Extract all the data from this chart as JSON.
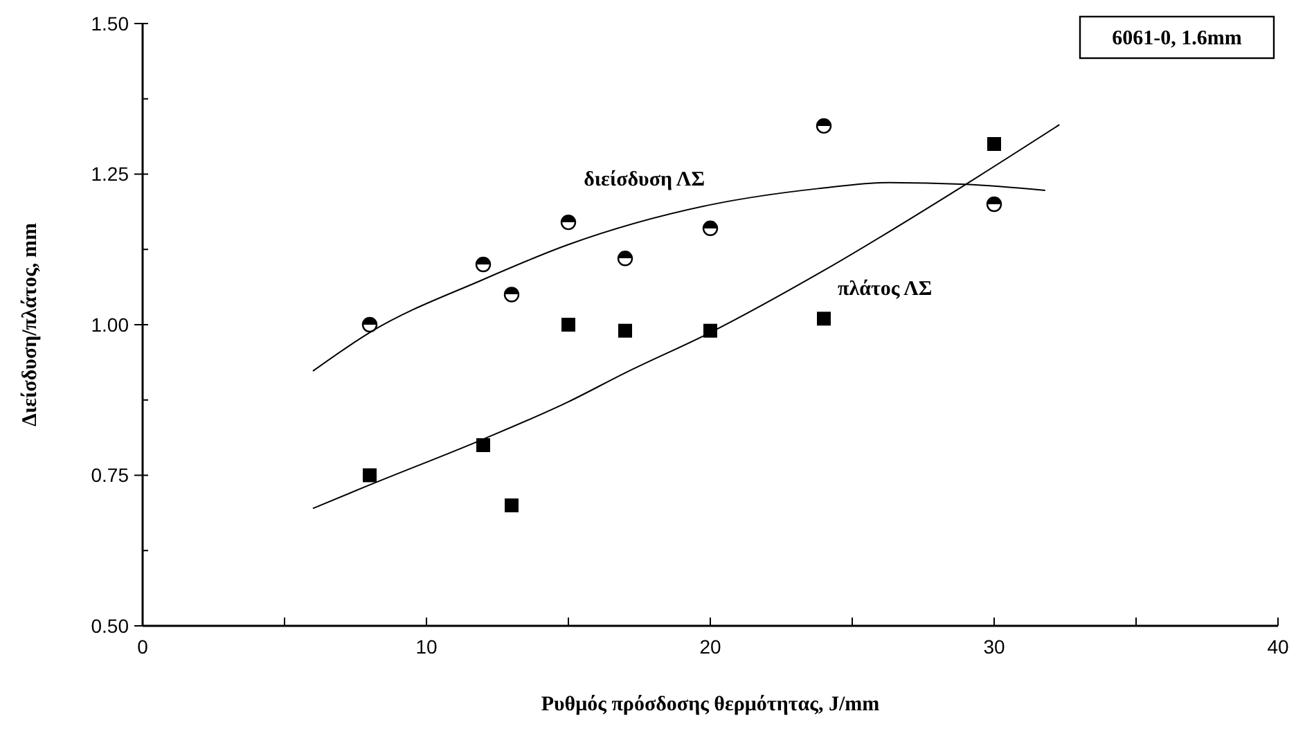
{
  "chart_data": {
    "type": "scatter",
    "xlabel": "Ρυθμός πρόσδοσης θερμότητας, J/mm",
    "ylabel": "Διείσδυση/πλάτος, mm",
    "annotations": [
      "6061-0, 1.6mm"
    ],
    "xlim": [
      0,
      40
    ],
    "ylim": [
      0.5,
      1.5
    ],
    "xticks": [
      0,
      {
        "value": 5,
        "label": null
      },
      10,
      {
        "value": 15,
        "label": null
      },
      20,
      {
        "value": 25,
        "label": null
      },
      30,
      {
        "value": 35,
        "label": null
      },
      40
    ],
    "yticks": [
      {
        "value": 0.5,
        "label": "0.50"
      },
      {
        "value": 0.625,
        "label": null
      },
      {
        "value": 0.75,
        "label": "0.75"
      },
      {
        "value": 0.875,
        "label": null
      },
      {
        "value": 1.0,
        "label": "1.00"
      },
      {
        "value": 1.125,
        "label": null
      },
      {
        "value": 1.25,
        "label": "1.25"
      },
      {
        "value": 1.375,
        "label": null
      },
      {
        "value": 1.5,
        "label": "1.50"
      }
    ],
    "series": [
      {
        "marker": "circle",
        "color": "#000000",
        "x": [
          8,
          12,
          13,
          15,
          17,
          20,
          24,
          30
        ],
        "values": [
          1.0,
          1.1,
          1.05,
          1.17,
          1.11,
          1.16,
          1.33,
          1.2
        ]
      },
      {
        "marker": "square",
        "color": "#000000",
        "x": [
          8,
          12,
          13,
          15,
          17,
          20,
          24,
          30
        ],
        "values": [
          0.75,
          0.8,
          0.7,
          1.0,
          0.99,
          0.99,
          1.01,
          1.3
        ]
      },
      {
        "name": "διείσδυση ΛΣ",
        "type": "line",
        "marker": "none",
        "line_style": "solid",
        "color": "#000000",
        "x": [
          6,
          8,
          12,
          15,
          20,
          23.8,
          26.3,
          29,
          31.8
        ],
        "values": [
          0.923,
          0.987,
          1.075,
          1.133,
          1.199,
          1.226,
          1.236,
          1.233,
          1.223
        ]
      },
      {
        "name": "πλάτος ΛΣ",
        "type": "line",
        "marker": "none",
        "line_style": "solid",
        "color": "#000000",
        "x": [
          6,
          8,
          12,
          15,
          17,
          20,
          24,
          29,
          32.3
        ],
        "values": [
          0.695,
          0.734,
          0.81,
          0.872,
          0.92,
          0.987,
          1.09,
          1.233,
          1.332
        ]
      }
    ]
  }
}
